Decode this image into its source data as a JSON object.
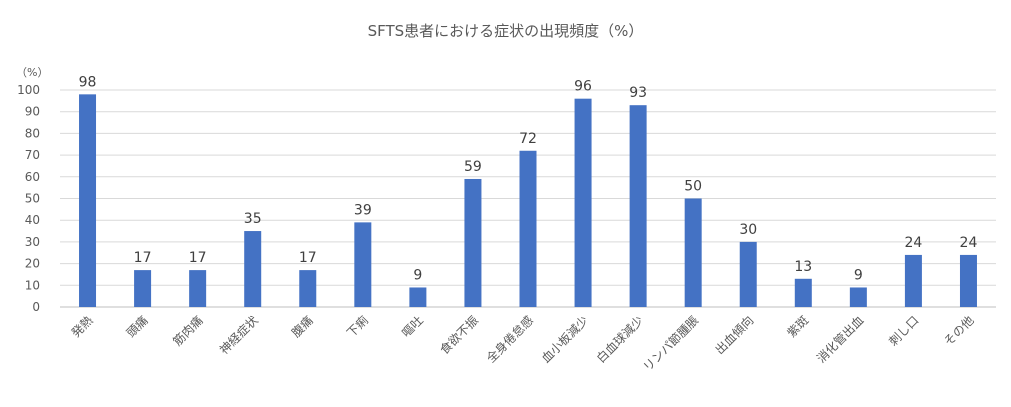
{
  "chart_data": {
    "type": "bar",
    "title": "SFTS患者における症状の出現頻度（%）",
    "unit_label": "（%）",
    "ylim": [
      0,
      100
    ],
    "yticks": [
      0,
      10,
      20,
      30,
      40,
      50,
      60,
      70,
      80,
      90,
      100
    ],
    "grid": true,
    "categories": [
      "発熱",
      "頭痛",
      "筋肉痛",
      "神経症状",
      "腹痛",
      "下痢",
      "嘔吐",
      "食欲不振",
      "全身倦怠感",
      "血小板減少",
      "白血球減少",
      "リンパ節腫脹",
      "出血傾向",
      "紫斑",
      "消化管出血",
      "刺し口",
      "その他"
    ],
    "values": [
      98,
      17,
      17,
      35,
      17,
      39,
      9,
      59,
      72,
      96,
      93,
      50,
      30,
      13,
      9,
      24,
      24
    ],
    "bar_color": "#4472C4"
  }
}
